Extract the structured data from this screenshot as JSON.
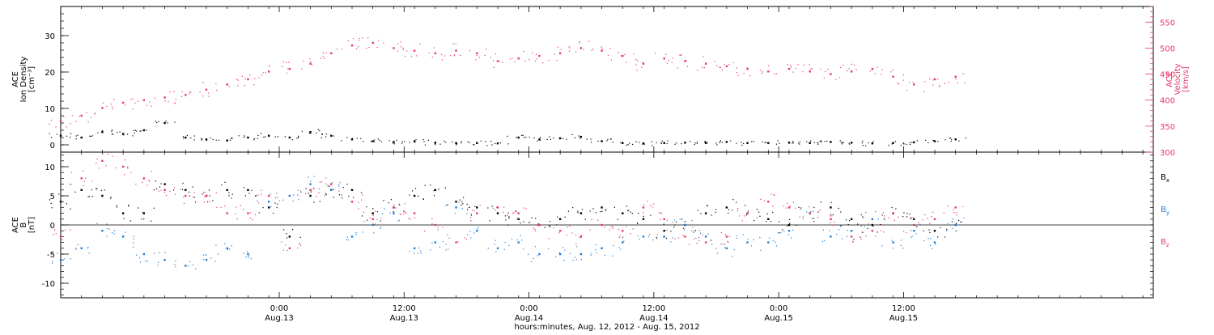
{
  "chart_data": [
    {
      "type": "scatter",
      "panel": "top",
      "y_axis_left": {
        "label_lines": [
          "ACE",
          "Ion Density",
          "[cm⁻³]"
        ],
        "ylim": [
          -2,
          38
        ],
        "ticks": [
          0,
          10,
          20,
          30
        ],
        "tick_labels": [
          "0",
          "10",
          "20",
          "30"
        ],
        "color": "#000000"
      },
      "y_axis_right": {
        "label_lines": [
          "ACE",
          "Velocity",
          "[km/s]"
        ],
        "ylim": [
          300,
          580
        ],
        "ticks": [
          300,
          350,
          400,
          450,
          500,
          550
        ],
        "tick_labels": [
          "300",
          "350",
          "400",
          "450",
          "500",
          "550"
        ],
        "color": "#e8386a"
      },
      "series": [
        {
          "axis": "left",
          "color": "#000000",
          "x": [
            0,
            2,
            4,
            6,
            8,
            10,
            12,
            14,
            16,
            18,
            20,
            22,
            24,
            26,
            28,
            30,
            32,
            34,
            36,
            38,
            40,
            42,
            44,
            46,
            48,
            50,
            52,
            54,
            56,
            58,
            60,
            62,
            64,
            66,
            68,
            70,
            72,
            74,
            76,
            78,
            80,
            82,
            84,
            86
          ],
          "y": [
            2.5,
            2.0,
            3.5,
            3.0,
            4.0,
            6.0,
            2.0,
            1.5,
            1.2,
            2.0,
            2.5,
            2.0,
            3.5,
            2.5,
            1.5,
            1.0,
            0.8,
            1.0,
            0.6,
            0.5,
            0.5,
            0.4,
            2.0,
            1.5,
            1.8,
            2.2,
            1.0,
            0.5,
            0.4,
            0.5,
            0.6,
            0.5,
            0.8,
            0.5,
            0.5,
            0.6,
            0.5,
            0.8,
            0.6,
            0.4,
            0.5,
            0.7,
            1.0,
            1.5
          ]
        },
        {
          "axis": "right",
          "color": "#e8386a",
          "x": [
            0,
            2,
            4,
            6,
            8,
            10,
            12,
            14,
            16,
            18,
            20,
            22,
            24,
            26,
            28,
            30,
            32,
            34,
            36,
            38,
            40,
            42,
            44,
            46,
            48,
            50,
            52,
            54,
            56,
            58,
            60,
            62,
            64,
            66,
            68,
            70,
            72,
            74,
            76,
            78,
            80,
            82,
            84,
            86
          ],
          "y": [
            360,
            370,
            385,
            395,
            400,
            405,
            410,
            420,
            430,
            440,
            455,
            460,
            470,
            490,
            505,
            510,
            500,
            495,
            490,
            495,
            490,
            475,
            480,
            485,
            490,
            500,
            495,
            485,
            470,
            480,
            475,
            470,
            465,
            460,
            455,
            460,
            455,
            450,
            455,
            460,
            445,
            430,
            440,
            445
          ]
        }
      ]
    },
    {
      "type": "scatter",
      "panel": "bottom",
      "y_axis_left": {
        "label_lines": [
          "ACE",
          "B",
          "[nT]"
        ],
        "ylim": [
          -12.5,
          12.5
        ],
        "ticks": [
          -10,
          -5,
          0,
          5,
          10
        ],
        "tick_labels": [
          "-10",
          "-5",
          "0",
          "5",
          "10"
        ]
      },
      "zero_line": true,
      "series": [
        {
          "name": "Bx",
          "name_main": "B",
          "name_sub": "x",
          "color": "#000000",
          "x": [
            0,
            2,
            4,
            6,
            8,
            10,
            12,
            14,
            16,
            18,
            20,
            22,
            24,
            26,
            28,
            30,
            32,
            34,
            36,
            38,
            40,
            42,
            44,
            46,
            48,
            50,
            52,
            54,
            56,
            58,
            60,
            62,
            64,
            66,
            68,
            70,
            72,
            74,
            76,
            78,
            80,
            82,
            84,
            86
          ],
          "y": [
            4,
            6,
            5,
            2,
            2,
            7,
            6,
            5,
            6,
            6,
            3,
            -2,
            5,
            6,
            6,
            2,
            3,
            5,
            6,
            4,
            3,
            2,
            1,
            0,
            1,
            2,
            3,
            2,
            1,
            -1,
            0,
            2,
            3,
            2,
            1,
            0,
            2,
            3,
            1,
            0,
            2,
            1,
            -1,
            0
          ]
        },
        {
          "name": "By",
          "name_main": "B",
          "name_sub": "y",
          "color": "#1e7fd8",
          "x": [
            0,
            2,
            4,
            6,
            8,
            10,
            12,
            14,
            16,
            18,
            20,
            22,
            24,
            26,
            28,
            30,
            32,
            34,
            36,
            38,
            40,
            42,
            44,
            46,
            48,
            50,
            52,
            54,
            56,
            58,
            60,
            62,
            64,
            66,
            68,
            70,
            72,
            74,
            76,
            78,
            80,
            82,
            84,
            86
          ],
          "y": [
            -6,
            -4,
            -1,
            -2,
            -5,
            -6,
            -7,
            -6,
            -4,
            -5,
            4,
            5,
            7,
            6,
            -2,
            0,
            2,
            -4,
            -3,
            3,
            -1,
            -4,
            -3,
            -5,
            -5,
            -5,
            -4,
            -3,
            -2,
            -2,
            0,
            -2,
            -4,
            -3,
            -3,
            -1,
            2,
            -2,
            -1,
            1,
            -3,
            -1,
            -3,
            0
          ]
        },
        {
          "name": "Bz",
          "name_main": "B",
          "name_sub": "z",
          "color": "#e8386a",
          "x": [
            0,
            2,
            4,
            6,
            8,
            10,
            12,
            14,
            16,
            18,
            20,
            22,
            24,
            26,
            28,
            30,
            32,
            34,
            36,
            38,
            40,
            42,
            44,
            46,
            48,
            50,
            52,
            54,
            56,
            58,
            60,
            62,
            64,
            66,
            68,
            70,
            72,
            74,
            76,
            78,
            80,
            82,
            84,
            86
          ],
          "y": [
            -2,
            8,
            11,
            10,
            8,
            6,
            5,
            5,
            2,
            2,
            5,
            -4,
            6,
            7,
            4,
            1,
            3,
            2,
            0,
            -3,
            2,
            3,
            2,
            0,
            -1,
            -2,
            0,
            -1,
            3,
            1,
            -2,
            -3,
            -2,
            2,
            4,
            3,
            2,
            1,
            -2,
            -1,
            2,
            0,
            1,
            3
          ]
        }
      ]
    }
  ],
  "x_axis": {
    "xlim": [
      "Aug 12, 2012 03:00",
      "Aug 16, 2012 12:00"
    ],
    "ticks": [
      {
        "time": "Aug 13, 2012 00:00",
        "label_time": "0:00",
        "label_date": "Aug.13"
      },
      {
        "time": "Aug 13, 2012 12:00",
        "label_time": "12:00",
        "label_date": "Aug.13"
      },
      {
        "time": "Aug 14, 2012 00:00",
        "label_time": "0:00",
        "label_date": "Aug.14"
      },
      {
        "time": "Aug 14, 2012 12:00",
        "label_time": "12:00",
        "label_date": "Aug.14"
      },
      {
        "time": "Aug 15, 2012 00:00",
        "label_time": "0:00",
        "label_date": "Aug.15"
      },
      {
        "time": "Aug 15, 2012 12:00",
        "label_time": "12:00",
        "label_date": "Aug.15"
      }
    ],
    "label": "hours:minutes, Aug. 12, 2012 - Aug. 15, 2012"
  }
}
